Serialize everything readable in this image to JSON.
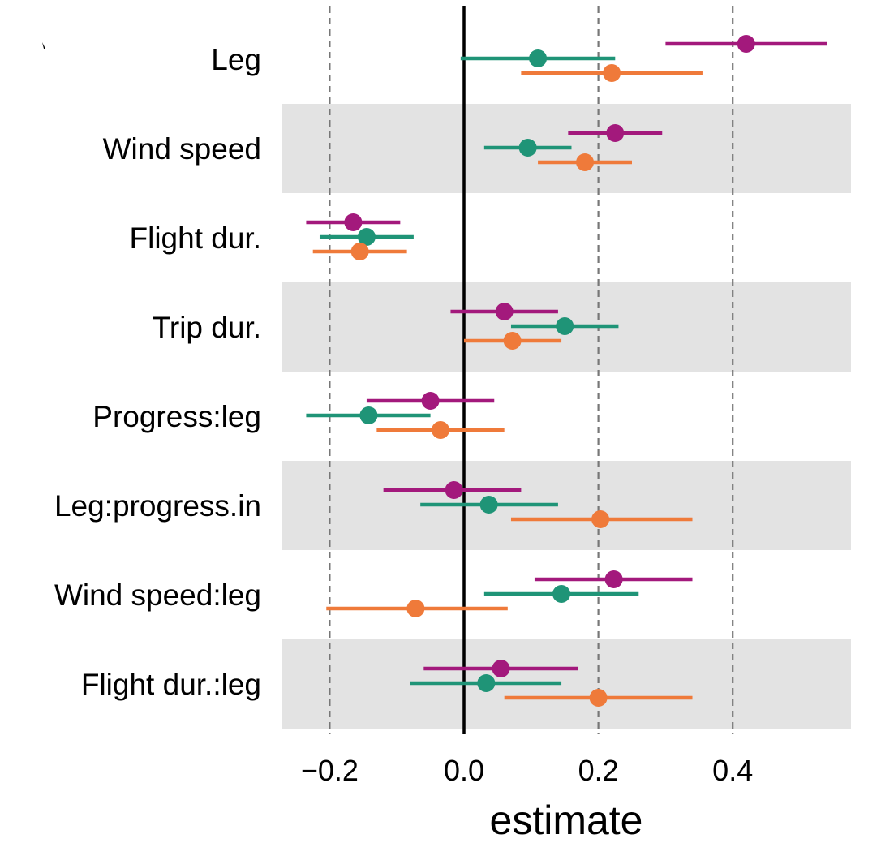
{
  "chart_data": {
    "type": "scatter",
    "xlabel": "estimate",
    "ylabel": "",
    "xlim": [
      -0.27,
      0.57
    ],
    "xticks": [
      -0.2,
      0.0,
      0.2,
      0.4
    ],
    "xtick_labels": [
      "−0.2",
      "0.0",
      "0.2",
      "0.4"
    ],
    "grid": "dashed vertical lines at -0.2, 0.2, 0.4",
    "zero_line": "solid vertical line at 0.0",
    "legend": "none",
    "categories": [
      "Leg",
      "Wind speed",
      "Flight dur.",
      "Trip dur.",
      "Progress:leg",
      "Leg:progress.in",
      "Wind speed:leg",
      "Flight dur.:leg"
    ],
    "series": [
      {
        "color": "#a3197c",
        "estimates": [
          0.42,
          0.225,
          -0.165,
          0.06,
          -0.05,
          -0.015,
          0.223,
          0.055
        ],
        "lower": [
          0.3,
          0.155,
          -0.235,
          -0.02,
          -0.145,
          -0.12,
          0.105,
          -0.06
        ],
        "upper": [
          0.54,
          0.295,
          -0.095,
          0.14,
          0.045,
          0.085,
          0.34,
          0.17
        ]
      },
      {
        "color": "#1f9477",
        "estimates": [
          0.11,
          0.095,
          -0.145,
          0.15,
          -0.142,
          0.037,
          0.145,
          0.033
        ],
        "lower": [
          -0.005,
          0.03,
          -0.215,
          0.07,
          -0.235,
          -0.065,
          0.03,
          -0.08
        ],
        "upper": [
          0.225,
          0.16,
          -0.075,
          0.23,
          -0.05,
          0.14,
          0.26,
          0.145
        ]
      },
      {
        "color": "#ef7a3a",
        "estimates": [
          0.22,
          0.18,
          -0.155,
          0.072,
          -0.035,
          0.203,
          -0.072,
          0.2
        ],
        "lower": [
          0.085,
          0.11,
          -0.225,
          0.0,
          -0.13,
          0.07,
          -0.205,
          0.06
        ],
        "upper": [
          0.355,
          0.25,
          -0.085,
          0.145,
          0.06,
          0.34,
          0.065,
          0.34
        ]
      }
    ]
  },
  "colors": {
    "band": "#e3e3e3",
    "grid": "#777777",
    "zero": "#000000"
  }
}
